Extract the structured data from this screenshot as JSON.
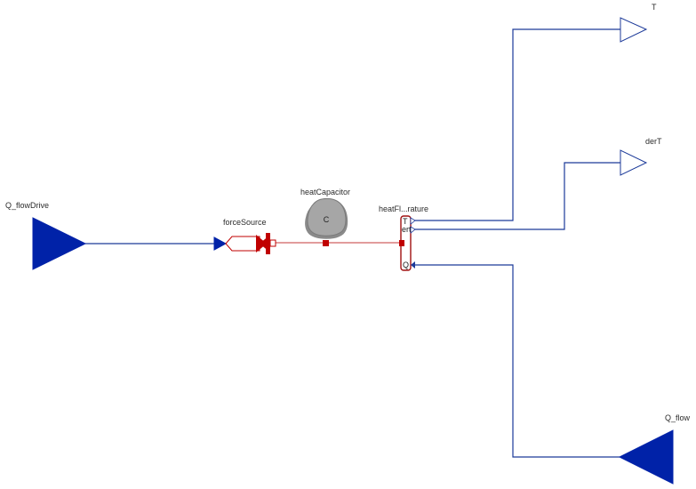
{
  "diagram": {
    "components": {
      "q_flow_drive": {
        "label": "Q_flowDrive"
      },
      "force_source": {
        "label": "forceSource"
      },
      "heat_capacitor": {
        "label": "heatCapacitor",
        "icon_text": "C"
      },
      "heat_flow_sensor": {
        "label": "heatFl...rature",
        "port_T": "T",
        "port_der": "ert",
        "port_Q": "Q"
      },
      "output_T": {
        "label": "T"
      },
      "output_derT": {
        "label": "derT"
      },
      "q_flow": {
        "label": "Q_flow"
      }
    },
    "colors": {
      "signal": "#1c3a99",
      "signal_fill": "#0022a8",
      "thermal": "#c00000",
      "thermal_line": "#d06060",
      "capacitor_fill": "#9b9b9b",
      "capacitor_stroke": "#777777"
    }
  }
}
